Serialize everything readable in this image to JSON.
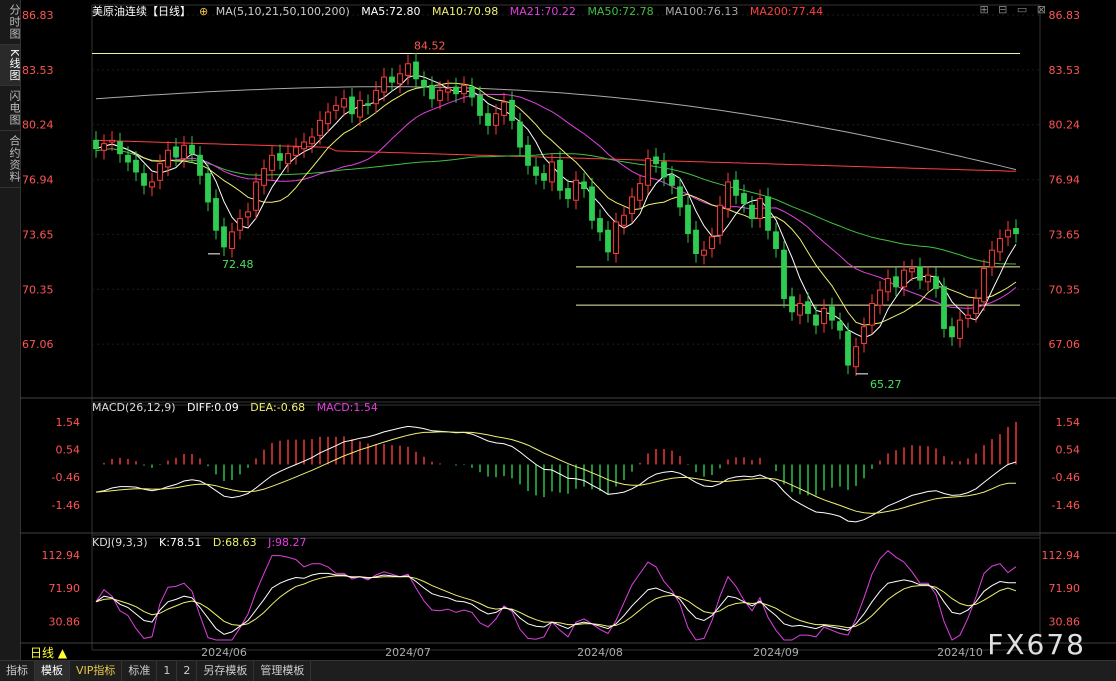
{
  "sidebar": [
    {
      "label": "分时图",
      "active": false
    },
    {
      "label": "K线图",
      "active": true
    },
    {
      "label": "闪电图",
      "active": false
    },
    {
      "label": "合约资料",
      "active": false
    }
  ],
  "header": {
    "title": "美原油连续【日线】",
    "ma_label": "MA(5,10,21,50,100,200)",
    "ma5": "MA5:72.80",
    "ma10": "MA10:70.98",
    "ma21": "MA21:70.22",
    "ma50": "MA50:72.78",
    "ma100": "MA100:76.13",
    "ma200": "MA200:77.44"
  },
  "macd_header": {
    "label": "MACD(26,12,9)",
    "diff": "DIFF:0.09",
    "dea": "DEA:-0.68",
    "macd": "MACD:1.54"
  },
  "kdj_header": {
    "label": "KDJ(9,3,3)",
    "k": "K:78.51",
    "d": "D:68.63",
    "j": "J:98.27"
  },
  "bottom_tabs": [
    "指标",
    "模板",
    "VIP指标",
    "标准",
    "1",
    "2",
    "另存模板",
    "管理模板"
  ],
  "period_label": "日线 ▲",
  "watermark": "FX678",
  "colors": {
    "up": "#ff3b3b",
    "down": "#2ecc50",
    "ma5": "#ffffff",
    "ma10": "#f0f070",
    "ma21": "#e040e0",
    "ma50": "#40c040",
    "ma100": "#aaaaaa",
    "ma200": "#ff4040",
    "diff": "#ffffff",
    "dea": "#f0f070"
  },
  "chart_data": {
    "type": "candlestick",
    "price_ticks": [
      "86.83",
      "83.53",
      "80.24",
      "76.94",
      "73.65",
      "70.35",
      "67.06"
    ],
    "price_range": [
      64.0,
      86.83
    ],
    "annotations": [
      {
        "label": "84.52",
        "value": 84.52,
        "index": 39
      },
      {
        "label": "72.48",
        "value": 72.48,
        "index": 15
      },
      {
        "label": "65.27",
        "value": 65.27,
        "index": 96
      }
    ],
    "hlines": [
      84.52,
      71.7,
      69.4
    ],
    "x_labels": [
      {
        "label": "2024/06",
        "index": 16
      },
      {
        "label": "2024/07",
        "index": 39
      },
      {
        "label": "2024/08",
        "index": 63
      },
      {
        "label": "2024/09",
        "index": 85
      },
      {
        "label": "2024/10",
        "index": 108
      }
    ],
    "closes": [
      78.8,
      79.1,
      79.3,
      78.5,
      78.0,
      77.4,
      76.6,
      76.8,
      77.9,
      78.7,
      78.3,
      79.0,
      78.5,
      77.2,
      75.6,
      73.9,
      72.9,
      73.8,
      74.6,
      75.0,
      76.8,
      77.6,
      78.4,
      78.1,
      78.5,
      78.9,
      79.2,
      79.5,
      80.5,
      81.0,
      81.4,
      81.8,
      80.9,
      81.7,
      81.4,
      82.3,
      83.1,
      82.8,
      83.3,
      83.9,
      83.0,
      82.5,
      81.8,
      82.3,
      82.4,
      82.1,
      82.6,
      81.9,
      80.8,
      80.2,
      80.9,
      81.6,
      80.5,
      78.9,
      77.8,
      77.2,
      76.9,
      78.0,
      76.3,
      75.8,
      76.9,
      76.4,
      74.5,
      73.8,
      72.6,
      74.4,
      74.8,
      75.9,
      76.7,
      78.2,
      77.9,
      77.1,
      76.6,
      75.3,
      73.7,
      72.5,
      72.7,
      73.5,
      75.4,
      76.8,
      76.0,
      75.5,
      74.6,
      75.8,
      73.9,
      72.8,
      69.8,
      69.0,
      69.5,
      68.9,
      68.2,
      69.2,
      68.5,
      67.9,
      65.8,
      66.9,
      68.1,
      69.5,
      70.3,
      71.0,
      70.5,
      71.5,
      71.6,
      70.9,
      71.2,
      70.4,
      68.0,
      67.5,
      68.5,
      68.8,
      69.8,
      71.6,
      72.7,
      73.4,
      73.9,
      73.7
    ],
    "opens": [
      79.3,
      78.7,
      79.2,
      79.2,
      78.4,
      78.1,
      77.3,
      76.5,
      76.9,
      77.7,
      78.9,
      78.2,
      79.0,
      78.4,
      77.3,
      75.8,
      74.1,
      72.8,
      73.9,
      74.7,
      75.1,
      76.6,
      77.5,
      78.5,
      77.9,
      78.4,
      78.8,
      79.1,
      79.6,
      80.3,
      81.1,
      81.3,
      81.9,
      80.7,
      81.5,
      81.5,
      82.2,
      83.1,
      82.7,
      83.2,
      84.0,
      82.9,
      82.6,
      81.7,
      82.2,
      82.5,
      82.1,
      82.5,
      82.0,
      80.9,
      80.2,
      80.8,
      81.7,
      80.4,
      79.0,
      77.7,
      77.3,
      76.8,
      78.1,
      76.4,
      75.7,
      76.8,
      76.5,
      74.6,
      73.9,
      72.5,
      74.2,
      74.9,
      75.7,
      76.6,
      78.3,
      78.0,
      77.2,
      76.5,
      75.4,
      73.9,
      72.4,
      72.8,
      73.6,
      75.2,
      76.9,
      76.1,
      75.4,
      74.6,
      75.9,
      73.8,
      72.7,
      69.9,
      68.8,
      69.6,
      68.8,
      68.3,
      69.3,
      68.4,
      67.8,
      65.7,
      67.1,
      68.2,
      69.4,
      70.2,
      71.1,
      70.5,
      71.4,
      71.7,
      70.8,
      71.1,
      70.5,
      68.1,
      67.4,
      68.6,
      68.9,
      69.6,
      71.7,
      72.6,
      73.5,
      74.0
    ],
    "highs_extra": 0.55,
    "macd": {
      "range": [
        -2.3,
        1.9
      ],
      "ticks": [
        "1.54",
        "0.54",
        "-0.46",
        "-1.46"
      ],
      "diff": [
        -1.0,
        -0.95,
        -0.85,
        -0.8,
        -0.8,
        -0.82,
        -0.9,
        -0.95,
        -0.9,
        -0.8,
        -0.72,
        -0.6,
        -0.55,
        -0.6,
        -0.75,
        -0.95,
        -1.15,
        -1.2,
        -1.15,
        -1.05,
        -0.85,
        -0.62,
        -0.4,
        -0.25,
        -0.12,
        0.0,
        0.12,
        0.25,
        0.42,
        0.55,
        0.68,
        0.82,
        0.88,
        0.95,
        1.0,
        1.08,
        1.18,
        1.25,
        1.32,
        1.38,
        1.35,
        1.3,
        1.22,
        1.2,
        1.18,
        1.15,
        1.16,
        1.1,
        0.98,
        0.85,
        0.78,
        0.75,
        0.65,
        0.45,
        0.22,
        0.0,
        -0.18,
        -0.2,
        -0.35,
        -0.5,
        -0.52,
        -0.58,
        -0.75,
        -0.9,
        -1.08,
        -1.05,
        -1.0,
        -0.88,
        -0.72,
        -0.5,
        -0.35,
        -0.28,
        -0.25,
        -0.32,
        -0.48,
        -0.65,
        -0.78,
        -0.8,
        -0.7,
        -0.52,
        -0.45,
        -0.42,
        -0.45,
        -0.38,
        -0.5,
        -0.65,
        -0.98,
        -1.25,
        -1.42,
        -1.58,
        -1.72,
        -1.75,
        -1.8,
        -1.88,
        -2.05,
        -2.08,
        -2.0,
        -1.85,
        -1.68,
        -1.5,
        -1.38,
        -1.25,
        -1.12,
        -1.05,
        -0.98,
        -0.95,
        -1.05,
        -1.12,
        -1.1,
        -1.02,
        -0.88,
        -0.65,
        -0.42,
        -0.2,
        0.0,
        0.09
      ],
      "dea": [
        -1.0,
        -0.98,
        -0.95,
        -0.92,
        -0.9,
        -0.88,
        -0.88,
        -0.89,
        -0.89,
        -0.87,
        -0.84,
        -0.79,
        -0.74,
        -0.71,
        -0.72,
        -0.77,
        -0.85,
        -0.92,
        -0.97,
        -0.99,
        -0.96,
        -0.89,
        -0.79,
        -0.68,
        -0.57,
        -0.45,
        -0.33,
        -0.21,
        -0.08,
        0.05,
        0.18,
        0.31,
        0.42,
        0.53,
        0.62,
        0.72,
        0.81,
        0.9,
        0.98,
        1.06,
        1.12,
        1.16,
        1.17,
        1.18,
        1.18,
        1.17,
        1.17,
        1.16,
        1.12,
        1.07,
        1.01,
        0.96,
        0.9,
        0.81,
        0.7,
        0.56,
        0.41,
        0.29,
        0.16,
        0.03,
        -0.08,
        -0.18,
        -0.3,
        -0.42,
        -0.55,
        -0.65,
        -0.72,
        -0.75,
        -0.75,
        -0.7,
        -0.63,
        -0.56,
        -0.5,
        -0.47,
        -0.47,
        -0.51,
        -0.56,
        -0.61,
        -0.63,
        -0.61,
        -0.58,
        -0.55,
        -0.53,
        -0.5,
        -0.5,
        -0.53,
        -0.62,
        -0.75,
        -0.88,
        -1.02,
        -1.16,
        -1.28,
        -1.38,
        -1.48,
        -1.59,
        -1.69,
        -1.75,
        -1.77,
        -1.75,
        -1.7,
        -1.64,
        -1.56,
        -1.47,
        -1.39,
        -1.31,
        -1.24,
        -1.2,
        -1.18,
        -1.16,
        -1.13,
        -1.08,
        -1.0,
        -0.88,
        -0.75,
        -0.68,
        -0.68
      ]
    },
    "kdj": {
      "range": [
        8,
        125
      ],
      "ticks": [
        "112.94",
        "71.90",
        "30.86"
      ],
      "k": [
        55,
        62,
        60,
        52,
        48,
        40,
        32,
        30,
        45,
        55,
        58,
        62,
        60,
        48,
        35,
        22,
        15,
        18,
        25,
        32,
        45,
        58,
        72,
        78,
        82,
        85,
        84,
        88,
        90,
        90,
        88,
        88,
        85,
        86,
        84,
        86,
        88,
        87,
        86,
        87,
        80,
        72,
        65,
        62,
        60,
        56,
        55,
        52,
        45,
        40,
        42,
        48,
        45,
        35,
        28,
        25,
        24,
        30,
        26,
        22,
        28,
        30,
        28,
        25,
        22,
        28,
        38,
        50,
        60,
        70,
        72,
        68,
        65,
        58,
        45,
        35,
        32,
        38,
        50,
        62,
        60,
        55,
        50,
        56,
        46,
        38,
        28,
        25,
        26,
        24,
        22,
        26,
        24,
        22,
        20,
        28,
        40,
        55,
        68,
        78,
        80,
        82,
        80,
        76,
        76,
        70,
        55,
        42,
        40,
        45,
        55,
        68,
        75,
        80,
        78.51,
        78.51
      ],
      "d": [
        55,
        58,
        59,
        56,
        53,
        49,
        43,
        39,
        41,
        46,
        50,
        54,
        56,
        53,
        47,
        39,
        31,
        27,
        26,
        28,
        34,
        42,
        52,
        61,
        68,
        74,
        77,
        81,
        84,
        86,
        87,
        87,
        86,
        86,
        85,
        85,
        86,
        86,
        86,
        86,
        84,
        80,
        75,
        71,
        67,
        63,
        60,
        57,
        53,
        48,
        46,
        47,
        46,
        42,
        37,
        33,
        30,
        30,
        29,
        27,
        27,
        28,
        28,
        27,
        25,
        26,
        30,
        37,
        45,
        53,
        59,
        62,
        63,
        61,
        56,
        49,
        43,
        41,
        44,
        50,
        53,
        54,
        53,
        54,
        51,
        47,
        41,
        36,
        32,
        29,
        27,
        27,
        26,
        25,
        23,
        25,
        30,
        38,
        48,
        58,
        65,
        71,
        74,
        75,
        75,
        73,
        67,
        59,
        53,
        50,
        52,
        57,
        63,
        69,
        72,
        68.63
      ],
      "j": [
        55,
        70,
        62,
        44,
        38,
        22,
        10,
        12,
        53,
        73,
        74,
        78,
        68,
        38,
        11,
        -12,
        -17,
        0,
        23,
        40,
        67,
        90,
        112,
        112,
        110,
        107,
        98,
        102,
        102,
        98,
        90,
        90,
        83,
        86,
        82,
        88,
        92,
        89,
        86,
        89,
        72,
        56,
        45,
        44,
        46,
        42,
        45,
        42,
        29,
        24,
        34,
        50,
        43,
        21,
        10,
        9,
        12,
        30,
        20,
        12,
        30,
        34,
        28,
        21,
        16,
        32,
        54,
        76,
        90,
        104,
        98,
        80,
        69,
        52,
        23,
        7,
        10,
        32,
        62,
        86,
        74,
        57,
        44,
        60,
        36,
        20,
        2,
        3,
        14,
        14,
        12,
        24,
        20,
        16,
        14,
        34,
        60,
        89,
        108,
        118,
        110,
        104,
        92,
        78,
        78,
        64,
        31,
        8,
        14,
        35,
        61,
        90,
        99,
        102,
        91,
        98.27
      ]
    }
  }
}
